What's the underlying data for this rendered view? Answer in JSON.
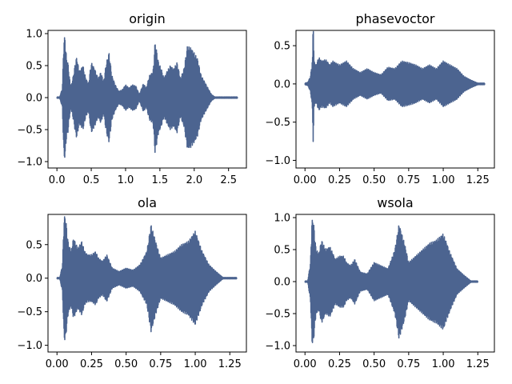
{
  "chart_data": [
    {
      "type": "line",
      "title": "origin",
      "xlabel": "",
      "ylabel": "",
      "xlim": [
        -0.13,
        2.76
      ],
      "ylim": [
        -1.1,
        1.05
      ],
      "xticks": [
        0,
        0.5,
        1,
        1.5,
        2,
        2.5
      ],
      "xtick_labels": [
        "0.0",
        "0.5",
        "1.0",
        "1.5",
        "2.0",
        "2.5"
      ],
      "yticks": [
        -1,
        -0.5,
        0,
        0.5,
        1
      ],
      "ytick_labels": [
        "−1.0",
        "−0.5",
        "0.0",
        "0.5",
        "1.0"
      ],
      "grid": false,
      "series": [
        {
          "color": "#4c6490",
          "x": [
            0,
            0.04,
            0.08,
            0.1,
            0.12,
            0.14,
            0.16,
            0.2,
            0.24,
            0.28,
            0.3,
            0.32,
            0.35,
            0.38,
            0.42,
            0.46,
            0.5,
            0.55,
            0.6,
            0.64,
            0.68,
            0.72,
            0.76,
            0.8,
            0.85,
            0.9,
            0.95,
            1.0,
            1.05,
            1.1,
            1.15,
            1.2,
            1.26,
            1.3,
            1.35,
            1.4,
            1.43,
            1.48,
            1.52,
            1.56,
            1.6,
            1.65,
            1.7,
            1.75,
            1.8,
            1.85,
            1.9,
            1.95,
            2.0,
            2.05,
            2.1,
            2.15,
            2.2,
            2.25,
            2.3,
            2.4,
            2.5,
            2.63
          ],
          "envelope": [
            0.01,
            0.01,
            0.15,
            0.92,
            0.95,
            0.6,
            0.55,
            0.15,
            0.35,
            0.62,
            0.6,
            0.4,
            0.45,
            0.5,
            0.3,
            0.22,
            0.55,
            0.45,
            0.3,
            0.4,
            0.25,
            0.55,
            0.7,
            0.35,
            0.2,
            0.1,
            0.12,
            0.2,
            0.15,
            0.2,
            0.18,
            0.05,
            0.22,
            0.15,
            0.35,
            0.4,
            0.88,
            0.55,
            0.45,
            0.3,
            0.4,
            0.5,
            0.45,
            0.55,
            0.3,
            0.45,
            0.8,
            0.78,
            0.7,
            0.6,
            0.35,
            0.25,
            0.15,
            0.05,
            0.01,
            0.01,
            0.01,
            0.01
          ]
        }
      ]
    },
    {
      "type": "line",
      "title": "phasevoctor",
      "xlabel": "",
      "ylabel": "",
      "xlim": [
        -0.065,
        1.37
      ],
      "ylim": [
        -1.1,
        0.7
      ],
      "xticks": [
        0,
        0.25,
        0.5,
        0.75,
        1,
        1.25
      ],
      "xtick_labels": [
        "0.00",
        "0.25",
        "0.50",
        "0.75",
        "1.00",
        "1.25"
      ],
      "yticks": [
        -1,
        -0.5,
        0,
        0.5
      ],
      "ytick_labels": [
        "−1.0",
        "−0.5",
        "0.0",
        "0.5"
      ],
      "grid": false,
      "series": [
        {
          "color": "#4c6490",
          "x": [
            0,
            0.02,
            0.04,
            0.055,
            0.06,
            0.065,
            0.08,
            0.1,
            0.12,
            0.15,
            0.18,
            0.2,
            0.25,
            0.3,
            0.35,
            0.4,
            0.45,
            0.5,
            0.55,
            0.6,
            0.65,
            0.7,
            0.75,
            0.8,
            0.85,
            0.9,
            0.95,
            1.0,
            1.05,
            1.1,
            1.15,
            1.2,
            1.25,
            1.3
          ],
          "envelope": [
            0.01,
            0.02,
            0.1,
            0.35,
            0.95,
            0.3,
            0.25,
            0.35,
            0.3,
            0.32,
            0.25,
            0.3,
            0.25,
            0.3,
            0.2,
            0.15,
            0.2,
            0.15,
            0.12,
            0.22,
            0.2,
            0.3,
            0.28,
            0.25,
            0.2,
            0.25,
            0.2,
            0.3,
            0.25,
            0.2,
            0.1,
            0.05,
            0.01,
            0.01
          ]
        }
      ]
    },
    {
      "type": "line",
      "title": "ola",
      "xlabel": "",
      "ylabel": "",
      "xlim": [
        -0.065,
        1.37
      ],
      "ylim": [
        -1.1,
        0.95
      ],
      "xticks": [
        0,
        0.25,
        0.5,
        0.75,
        1,
        1.25
      ],
      "xtick_labels": [
        "0.00",
        "0.25",
        "0.50",
        "0.75",
        "1.00",
        "1.25"
      ],
      "yticks": [
        -1,
        -0.5,
        0,
        0.5
      ],
      "ytick_labels": [
        "−1.0",
        "−0.5",
        "0.0",
        "0.5"
      ],
      "grid": false,
      "series": [
        {
          "color": "#4c6490",
          "x": [
            0,
            0.02,
            0.04,
            0.05,
            0.06,
            0.08,
            0.1,
            0.12,
            0.15,
            0.18,
            0.2,
            0.22,
            0.25,
            0.28,
            0.3,
            0.33,
            0.36,
            0.4,
            0.45,
            0.5,
            0.55,
            0.6,
            0.65,
            0.68,
            0.72,
            0.75,
            0.8,
            0.85,
            0.9,
            0.95,
            1.0,
            1.05,
            1.1,
            1.15,
            1.2,
            1.3
          ],
          "envelope": [
            0.01,
            0.01,
            0.2,
            0.88,
            0.95,
            0.55,
            0.4,
            0.6,
            0.45,
            0.55,
            0.4,
            0.35,
            0.35,
            0.4,
            0.3,
            0.25,
            0.35,
            0.15,
            0.1,
            0.15,
            0.12,
            0.2,
            0.4,
            0.8,
            0.5,
            0.3,
            0.35,
            0.4,
            0.5,
            0.55,
            0.7,
            0.4,
            0.2,
            0.1,
            0.01,
            0.01
          ]
        }
      ]
    },
    {
      "type": "line",
      "title": "wsola",
      "xlabel": "",
      "ylabel": "",
      "xlim": [
        -0.065,
        1.37
      ],
      "ylim": [
        -1.1,
        1.05
      ],
      "xticks": [
        0,
        0.25,
        0.5,
        0.75,
        1,
        1.25
      ],
      "xtick_labels": [
        "0.00",
        "0.25",
        "0.50",
        "0.75",
        "1.00",
        "1.25"
      ],
      "yticks": [
        -1,
        -0.5,
        0,
        0.5,
        1
      ],
      "ytick_labels": [
        "−1.0",
        "−0.5",
        "0.0",
        "0.5",
        "1.0"
      ],
      "grid": false,
      "series": [
        {
          "color": "#4c6490",
          "x": [
            0,
            0.02,
            0.04,
            0.05,
            0.06,
            0.08,
            0.1,
            0.12,
            0.15,
            0.18,
            0.2,
            0.22,
            0.25,
            0.28,
            0.3,
            0.33,
            0.36,
            0.4,
            0.45,
            0.5,
            0.55,
            0.6,
            0.65,
            0.68,
            0.72,
            0.75,
            0.8,
            0.85,
            0.9,
            0.95,
            1.0,
            1.05,
            1.1,
            1.15,
            1.2,
            1.25
          ],
          "envelope": [
            0.01,
            0.01,
            0.3,
            0.95,
            0.98,
            0.5,
            0.45,
            0.65,
            0.5,
            0.55,
            0.45,
            0.35,
            0.4,
            0.4,
            0.3,
            0.25,
            0.35,
            0.15,
            0.12,
            0.3,
            0.25,
            0.2,
            0.5,
            0.9,
            0.6,
            0.3,
            0.4,
            0.5,
            0.6,
            0.65,
            0.75,
            0.45,
            0.2,
            0.1,
            0.01,
            0.01
          ]
        }
      ]
    }
  ]
}
